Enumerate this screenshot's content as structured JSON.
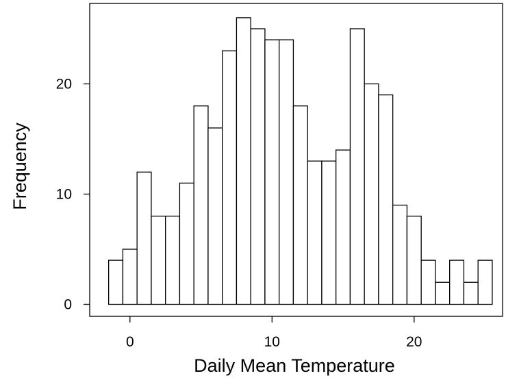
{
  "chart_data": {
    "type": "histogram",
    "title": "",
    "xlabel": "Daily Mean Temperature",
    "ylabel": "Frequency",
    "bin_edges": [
      -1.5,
      -0.5,
      0.5,
      1.5,
      2.5,
      3.5,
      4.5,
      5.5,
      6.5,
      7.5,
      8.5,
      9.5,
      10.5,
      11.5,
      12.5,
      13.5,
      14.5,
      15.5,
      16.5,
      17.5,
      18.5,
      19.5,
      20.5,
      21.5,
      22.5,
      23.5,
      24.5,
      25.5
    ],
    "values": [
      4,
      5,
      12,
      8,
      8,
      11,
      18,
      16,
      23,
      26,
      25,
      24,
      24,
      18,
      13,
      13,
      14,
      25,
      20,
      19,
      9,
      8,
      4,
      2,
      4,
      2,
      4
    ],
    "xlim": [
      -3,
      26
    ],
    "ylim": [
      -1,
      27
    ],
    "xticks": [
      "0",
      "10",
      "20"
    ],
    "yticks": [
      "0",
      "10",
      "20"
    ],
    "grid": false,
    "box": true
  }
}
